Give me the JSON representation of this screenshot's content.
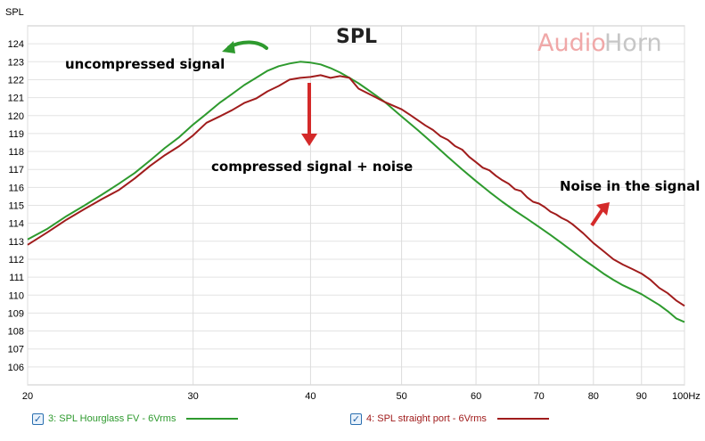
{
  "chart_data": {
    "type": "line",
    "title": "SPL",
    "ylabel": "SPL",
    "xunit": "Hz",
    "xscale": "log",
    "xlim": [
      20,
      100
    ],
    "ylim": [
      105,
      125
    ],
    "yticks": [
      106,
      107,
      108,
      109,
      110,
      111,
      112,
      113,
      114,
      115,
      116,
      117,
      118,
      119,
      120,
      121,
      122,
      123,
      124
    ],
    "xticks": [
      20,
      30,
      40,
      50,
      60,
      70,
      80,
      90,
      100
    ],
    "grid": true,
    "series": [
      {
        "name": "3: SPL Hourglass FV - 6Vrms",
        "color": "#2e9a2e",
        "x": [
          20,
          21,
          22,
          23,
          24,
          25,
          26,
          27,
          28,
          29,
          30,
          31,
          32,
          33,
          34,
          35,
          36,
          37,
          38,
          39,
          40,
          41,
          42,
          43,
          44,
          45,
          46,
          47,
          48,
          49,
          50,
          52,
          54,
          56,
          58,
          60,
          62,
          64,
          66,
          68,
          70,
          72,
          74,
          76,
          78,
          80,
          82,
          84,
          86,
          88,
          90,
          92,
          94,
          96,
          98,
          100
        ],
        "values": [
          113.1,
          113.7,
          114.4,
          115.0,
          115.6,
          116.2,
          116.8,
          117.5,
          118.2,
          118.8,
          119.5,
          120.1,
          120.7,
          121.2,
          121.7,
          122.1,
          122.5,
          122.75,
          122.9,
          123.0,
          122.95,
          122.85,
          122.65,
          122.4,
          122.1,
          121.8,
          121.45,
          121.1,
          120.75,
          120.35,
          119.95,
          119.2,
          118.45,
          117.7,
          117.0,
          116.35,
          115.75,
          115.2,
          114.7,
          114.25,
          113.8,
          113.35,
          112.9,
          112.45,
          112.0,
          111.6,
          111.2,
          110.85,
          110.55,
          110.3,
          110.05,
          109.75,
          109.45,
          109.1,
          108.7,
          108.5
        ]
      },
      {
        "name": "4: SPL straight port - 6Vrms",
        "color": "#a01c1c",
        "x": [
          20,
          21,
          22,
          23,
          24,
          25,
          26,
          27,
          28,
          29,
          30,
          31,
          32,
          33,
          34,
          35,
          36,
          37,
          38,
          39,
          40,
          41,
          42,
          43,
          44,
          45,
          46,
          47,
          48,
          49,
          50,
          51,
          52,
          53,
          54,
          55,
          56,
          57,
          58,
          59,
          60,
          61,
          62,
          63,
          64,
          65,
          66,
          67,
          68,
          69,
          70,
          71,
          72,
          73,
          74,
          75,
          76,
          78,
          80,
          82,
          84,
          86,
          88,
          90,
          92,
          94,
          96,
          98,
          100
        ],
        "values": [
          112.8,
          113.5,
          114.2,
          114.8,
          115.35,
          115.85,
          116.5,
          117.2,
          117.8,
          118.3,
          118.9,
          119.6,
          119.95,
          120.3,
          120.7,
          120.95,
          121.35,
          121.65,
          122.0,
          122.1,
          122.15,
          122.25,
          122.1,
          122.2,
          122.1,
          121.5,
          121.25,
          121.0,
          120.75,
          120.55,
          120.35,
          120.05,
          119.75,
          119.45,
          119.2,
          118.85,
          118.65,
          118.3,
          118.1,
          117.7,
          117.4,
          117.1,
          116.95,
          116.65,
          116.4,
          116.2,
          115.9,
          115.8,
          115.45,
          115.2,
          115.1,
          114.9,
          114.65,
          114.5,
          114.3,
          114.15,
          113.95,
          113.45,
          112.9,
          112.45,
          112.0,
          111.7,
          111.45,
          111.2,
          110.85,
          110.4,
          110.1,
          109.7,
          109.4
        ]
      }
    ],
    "annotations": [
      {
        "text": "uncompressed signal"
      },
      {
        "text": "compressed signal + noise"
      },
      {
        "text": "Noise in the signal"
      }
    ]
  },
  "watermark": {
    "part1": "Audio",
    "part2": "Horn"
  },
  "legend": {
    "items": [
      {
        "label": "3: SPL Hourglass FV - 6Vrms",
        "checked": "✓"
      },
      {
        "label": "4: SPL straight port - 6Vrms",
        "checked": "✓"
      }
    ]
  }
}
